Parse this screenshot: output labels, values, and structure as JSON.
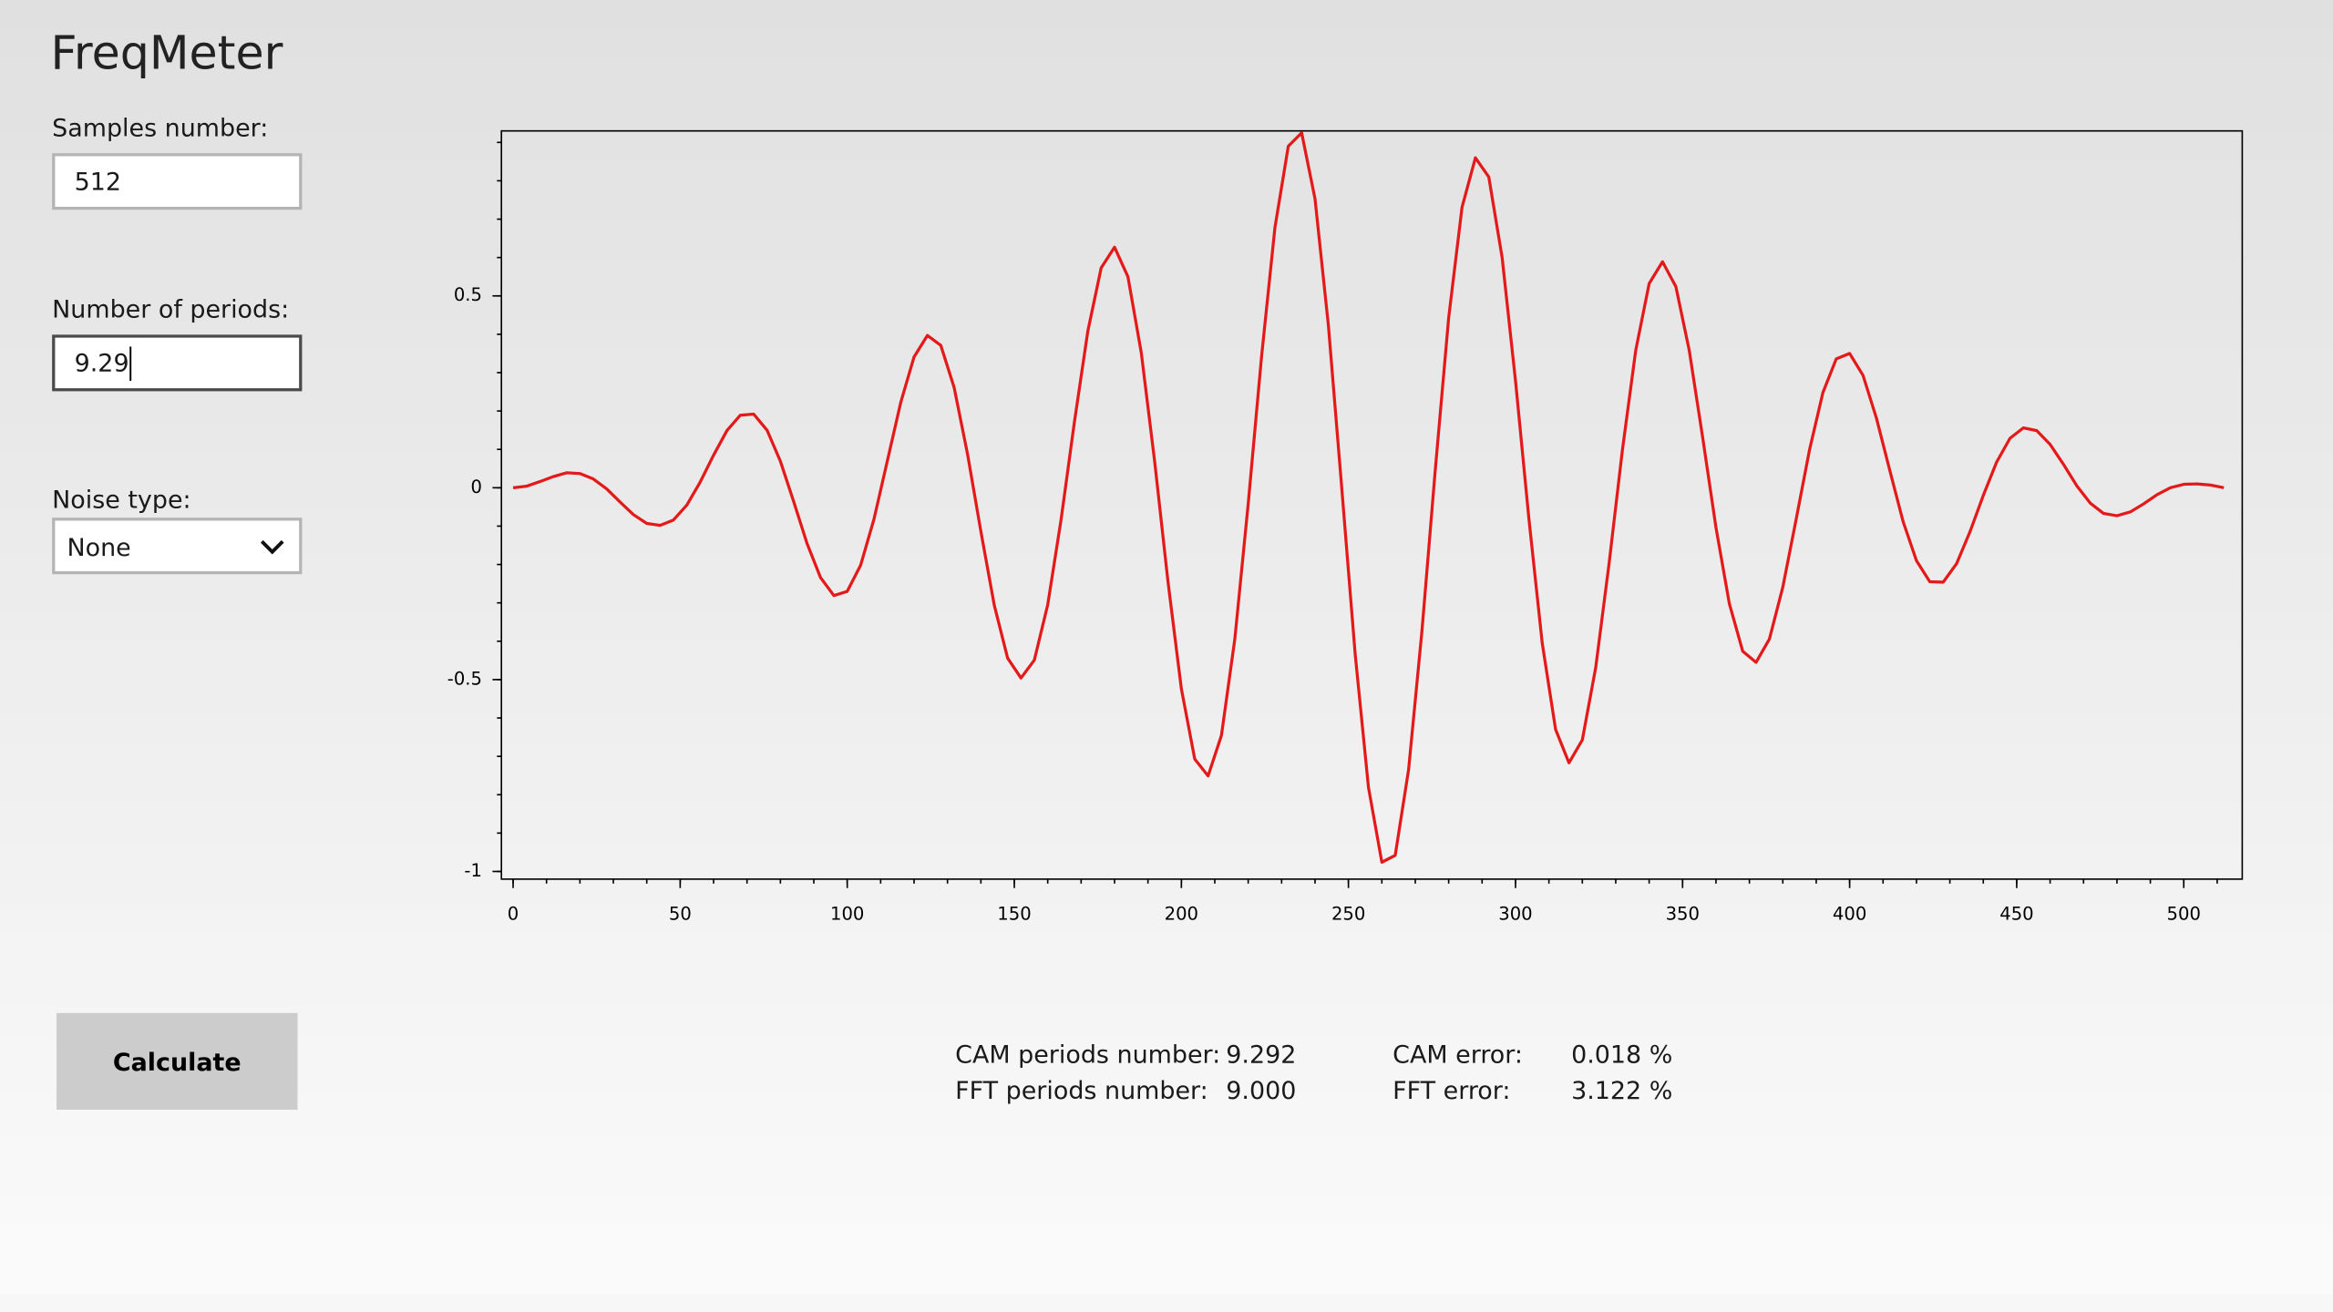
{
  "app": {
    "title": "FreqMeter"
  },
  "form": {
    "samples": {
      "label": "Samples number:",
      "value": "512"
    },
    "periods": {
      "label": "Number of periods:",
      "value": "9.29"
    },
    "noise": {
      "label": "Noise type:",
      "value": "None"
    },
    "button": "Calculate"
  },
  "results": {
    "rows": [
      [
        "CAM periods number:",
        "9.292",
        "CAM error:",
        "0.018 %"
      ],
      [
        "FFT periods number:",
        "9.000",
        "FFT error:",
        "3.122 %"
      ]
    ]
  },
  "chart_data": {
    "type": "line",
    "color": "#e41a1a",
    "xlim": [
      -3.5,
      517.5
    ],
    "ylim": [
      -1.02,
      0.93
    ],
    "xticks": [
      0,
      50,
      100,
      150,
      200,
      250,
      300,
      350,
      400,
      450,
      500
    ],
    "yticks": [
      -1,
      -0.5,
      0,
      0.5
    ],
    "xticks_minor": [
      0,
      10,
      20,
      30,
      40,
      50,
      60,
      70,
      80,
      90,
      100,
      110,
      120,
      130,
      140,
      150,
      160,
      170,
      180,
      190,
      200,
      210,
      220,
      230,
      240,
      250,
      260,
      270,
      280,
      290,
      300,
      310,
      320,
      330,
      340,
      350,
      360,
      370,
      380,
      390,
      400,
      410,
      420,
      430,
      440,
      450,
      460,
      470,
      480,
      490,
      500,
      510
    ],
    "yticks_minor": [
      -1,
      -0.9,
      -0.8,
      -0.7,
      -0.6,
      -0.5,
      -0.4,
      -0.3,
      -0.2,
      -0.1,
      0,
      0.1,
      0.2,
      0.3,
      0.4,
      0.5,
      0.6,
      0.7,
      0.8,
      0.9
    ],
    "x": [
      0,
      4,
      8,
      12,
      16,
      20,
      24,
      28,
      32,
      36,
      40,
      44,
      48,
      52,
      56,
      60,
      64,
      68,
      72,
      76,
      80,
      84,
      88,
      92,
      96,
      100,
      104,
      108,
      112,
      116,
      120,
      124,
      128,
      132,
      136,
      140,
      144,
      148,
      152,
      156,
      160,
      164,
      168,
      172,
      176,
      180,
      184,
      188,
      192,
      196,
      200,
      204,
      208,
      212,
      216,
      220,
      224,
      228,
      232,
      236,
      240,
      244,
      248,
      252,
      256,
      260,
      264,
      268,
      272,
      276,
      280,
      284,
      288,
      292,
      296,
      300,
      304,
      308,
      312,
      316,
      320,
      324,
      328,
      332,
      336,
      340,
      344,
      348,
      352,
      356,
      360,
      364,
      368,
      372,
      376,
      380,
      384,
      388,
      392,
      396,
      400,
      404,
      408,
      412,
      416,
      420,
      424,
      428,
      432,
      436,
      440,
      444,
      448,
      452,
      456,
      460,
      464,
      468,
      472,
      476,
      480,
      484,
      488,
      492,
      496,
      500,
      504,
      508,
      512
    ],
    "values": [
      0,
      0.004,
      0.016,
      0.029,
      0.039,
      0.037,
      0.023,
      -0.003,
      -0.037,
      -0.07,
      -0.093,
      -0.098,
      -0.084,
      -0.045,
      0.015,
      0.085,
      0.149,
      0.189,
      0.192,
      0.15,
      0.069,
      -0.037,
      -0.146,
      -0.234,
      -0.281,
      -0.27,
      -0.202,
      -0.082,
      0.07,
      0.222,
      0.341,
      0.397,
      0.371,
      0.261,
      0.088,
      -0.114,
      -0.306,
      -0.444,
      -0.496,
      -0.449,
      -0.305,
      -0.083,
      0.172,
      0.408,
      0.573,
      0.627,
      0.55,
      0.352,
      0.069,
      -0.245,
      -0.524,
      -0.707,
      -0.751,
      -0.645,
      -0.394,
      -0.042,
      0.342,
      0.678,
      0.89,
      0.925,
      0.753,
      0.423,
      -0.001,
      -0.432,
      -0.781,
      -0.976,
      -0.958,
      -0.735,
      -0.373,
      0.048,
      0.443,
      0.731,
      0.86,
      0.81,
      0.6,
      0.279,
      -0.08,
      -0.405,
      -0.63,
      -0.717,
      -0.657,
      -0.469,
      -0.198,
      0.099,
      0.359,
      0.532,
      0.589,
      0.524,
      0.358,
      0.132,
      -0.104,
      -0.302,
      -0.426,
      -0.455,
      -0.394,
      -0.259,
      -0.082,
      0.099,
      0.248,
      0.336,
      0.35,
      0.293,
      0.182,
      0.046,
      -0.088,
      -0.19,
      -0.245,
      -0.246,
      -0.198,
      -0.115,
      -0.02,
      0.067,
      0.129,
      0.156,
      0.149,
      0.113,
      0.061,
      0.005,
      -0.04,
      -0.067,
      -0.073,
      -0.063,
      -0.042,
      -0.018,
      0,
      0.009,
      0.01,
      0.007,
      0
    ]
  }
}
